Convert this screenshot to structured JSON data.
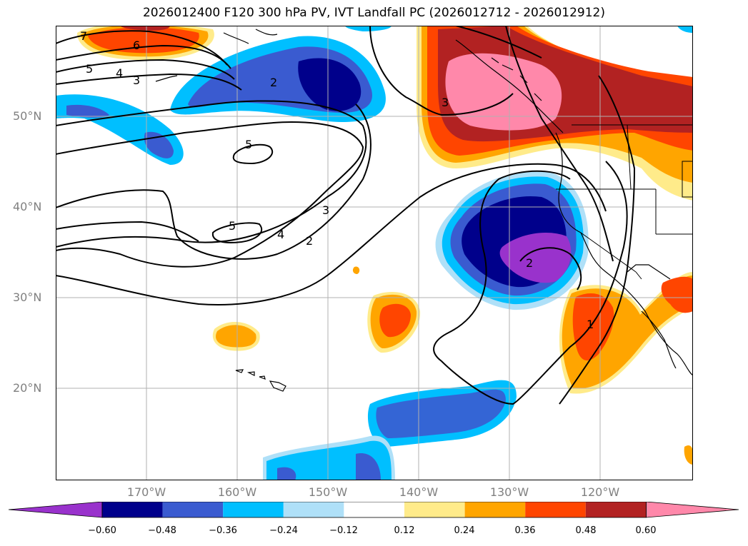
{
  "title": "2026012400 F120 300 hPa PV, IVT Landfall PC (2026012712 - 2026012912)",
  "lat_labels": [
    "50°N",
    "40°N",
    "30°N",
    "20°N"
  ],
  "lon_labels": [
    "170°W",
    "160°W",
    "150°W",
    "140°W",
    "130°W",
    "120°W"
  ],
  "contour_labels": [
    "7",
    "6",
    "5",
    "4",
    "3",
    "2",
    "3",
    "5",
    "5",
    "4",
    "3",
    "2",
    "2",
    "1"
  ],
  "colorbar": {
    "ticks": [
      "−0.60",
      "−0.48",
      "−0.36",
      "−0.24",
      "−0.12",
      "0.12",
      "0.24",
      "0.36",
      "0.48",
      "0.60"
    ],
    "colors": [
      "#9932cc",
      "#00008b",
      "#3a5bd0",
      "#00bfff",
      "#afe0f8",
      "#ffffff",
      "#ffeb8a",
      "#ffa500",
      "#ff4500",
      "#b22222",
      "#ff88aa"
    ]
  },
  "palette": {
    "pink": "#ff88aa",
    "darkred": "#b22222",
    "red": "#ff4500",
    "orange": "#ffa500",
    "yellow": "#ffeb8a",
    "lightblue": "#afe0f8",
    "skyblue": "#00bfff",
    "royalblue": "#3a5bd0",
    "navy": "#00008b",
    "purple": "#9932cc"
  }
}
